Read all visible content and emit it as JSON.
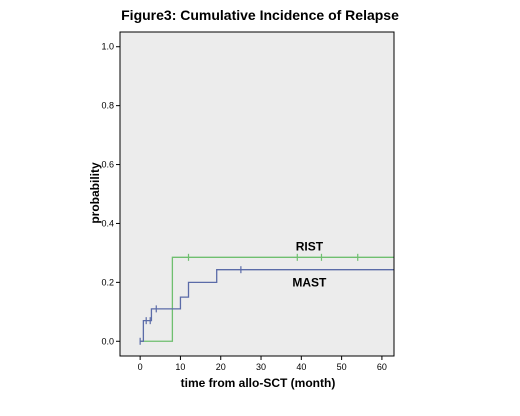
{
  "chart_data": {
    "type": "line",
    "step": true,
    "title": "Figure3: Cumulative Incidence of Relapse",
    "xlabel": "time from allo-SCT (month)",
    "ylabel": "probability",
    "xlim": [
      -5,
      63
    ],
    "ylim": [
      -0.05,
      1.05
    ],
    "xticks": [
      0,
      10,
      20,
      30,
      40,
      50,
      60
    ],
    "yticks": [
      0.0,
      0.2,
      0.4,
      0.6,
      0.8,
      1.0
    ],
    "ytick_labels": [
      "0.0",
      "0.2",
      "0.4",
      "0.6",
      "0.8",
      "1.0"
    ],
    "grid": false,
    "background": "#ececec",
    "series": [
      {
        "name": "RIST",
        "color": "#6fbf6f",
        "x": [
          0,
          8,
          63
        ],
        "y": [
          0.0,
          0.285,
          0.285
        ],
        "censored_x": [
          12,
          39,
          45,
          54
        ]
      },
      {
        "name": "MAST",
        "color": "#5b6ba8",
        "x": [
          0,
          0.8,
          2.8,
          10,
          12,
          19,
          63
        ],
        "y": [
          0.0,
          0.07,
          0.11,
          0.15,
          0.2,
          0.243,
          0.243
        ],
        "censored_x": [
          1.5,
          2.5,
          4,
          25
        ]
      }
    ]
  }
}
